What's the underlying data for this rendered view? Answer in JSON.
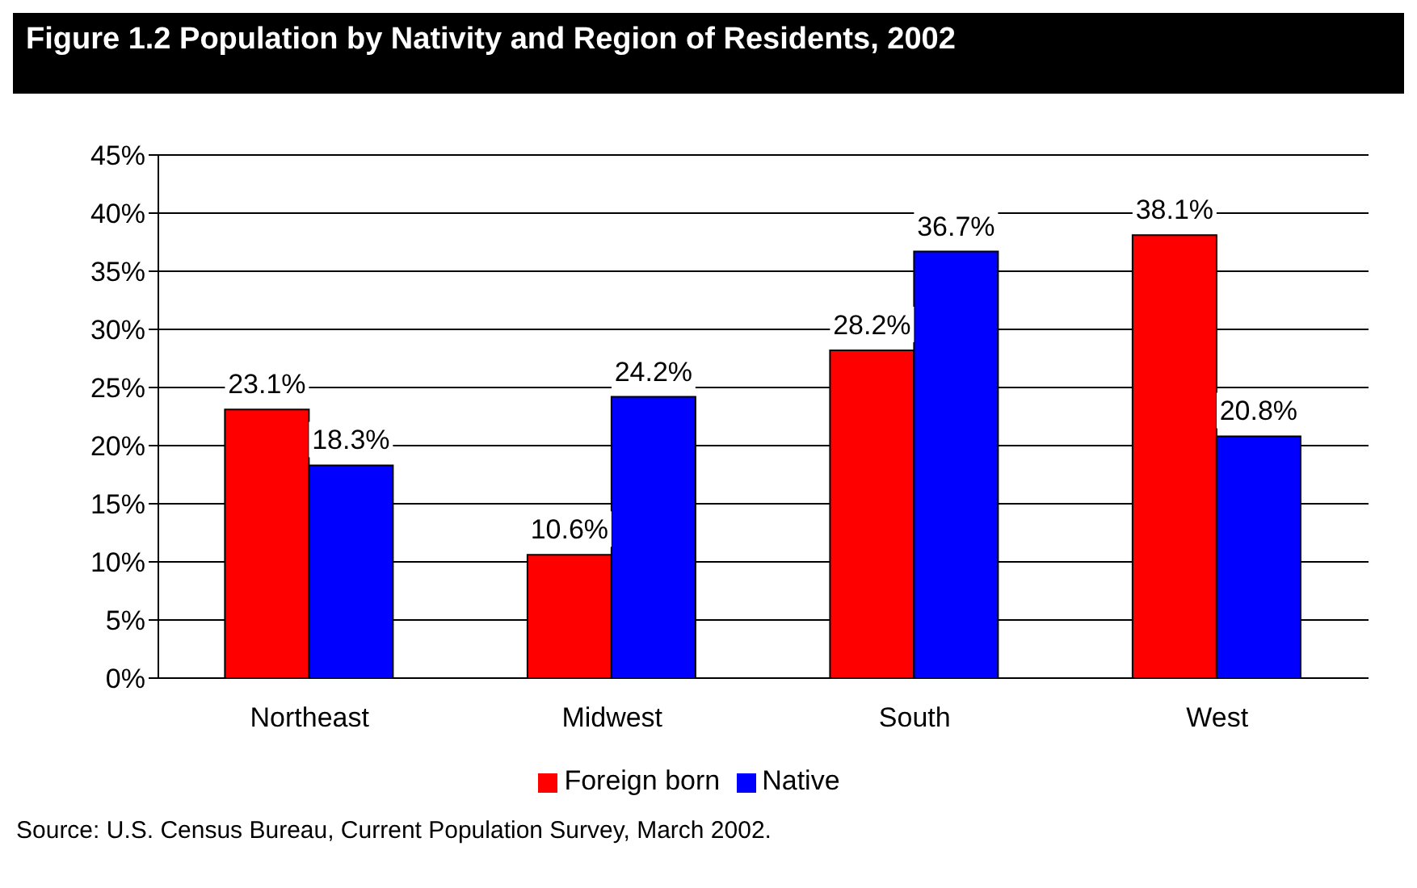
{
  "chart_data": {
    "type": "bar",
    "title": "Figure 1.2 Population by Nativity and Region of Residents, 2002",
    "categories": [
      "Northeast",
      "Midwest",
      "South",
      "West"
    ],
    "series": [
      {
        "name": "Foreign born",
        "color": "#ff0000",
        "values": [
          23.1,
          10.6,
          28.2,
          38.1
        ],
        "value_labels": [
          "23.1%",
          "10.6%",
          "28.2%",
          "38.1%"
        ]
      },
      {
        "name": "Native",
        "color": "#0000ff",
        "values": [
          18.3,
          24.2,
          36.7,
          20.8
        ],
        "value_labels": [
          "18.3%",
          "24.2%",
          "36.7%",
          "20.8%"
        ]
      }
    ],
    "ylim": [
      0,
      45
    ],
    "yticks": [
      {
        "value": 0,
        "label": "0%"
      },
      {
        "value": 5,
        "label": "5%"
      },
      {
        "value": 10,
        "label": "10%"
      },
      {
        "value": 15,
        "label": "15%"
      },
      {
        "value": 20,
        "label": "20%"
      },
      {
        "value": 25,
        "label": "25%"
      },
      {
        "value": 30,
        "label": "30%"
      },
      {
        "value": 35,
        "label": "35%"
      },
      {
        "value": 40,
        "label": "40%"
      },
      {
        "value": 45,
        "label": "45%"
      }
    ],
    "grid": "y",
    "legend": "bottom",
    "annotations": [
      "Source: U.S. Census Bureau, Current Population Survey, March 2002."
    ]
  }
}
